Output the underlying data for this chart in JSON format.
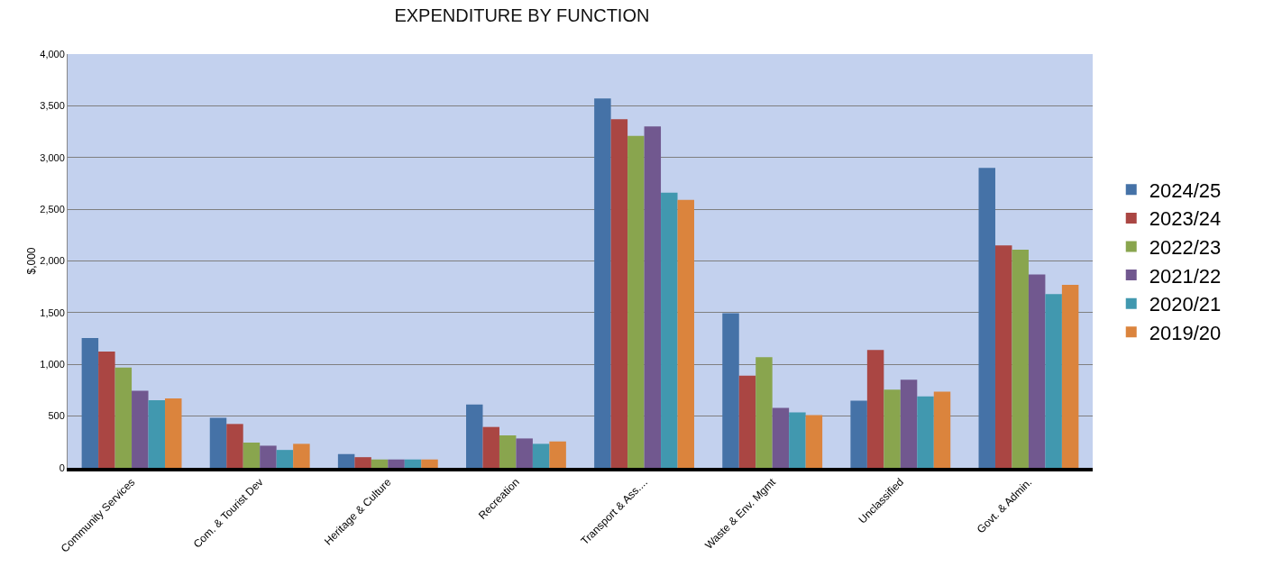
{
  "chart_data": {
    "type": "bar",
    "title": "EXPENDITURE BY FUNCTION",
    "ylabel": "$,000",
    "categories": [
      "Community Services",
      "Com. & Tourist Dev",
      "Heritage & Culture",
      "Recreation",
      "Transport & Ass....",
      "Waste & Env. Mgmt",
      "Unclassified",
      "Govt. & Admin."
    ],
    "series": [
      {
        "name": "2024/25",
        "color": "#4572a7",
        "values": [
          1255,
          483,
          133,
          612,
          3570,
          1495,
          650,
          2900
        ]
      },
      {
        "name": "2023/24",
        "color": "#aa4643",
        "values": [
          1125,
          424,
          103,
          395,
          3370,
          890,
          1140,
          2150
        ]
      },
      {
        "name": "2022/23",
        "color": "#89a54e",
        "values": [
          970,
          244,
          81,
          314,
          3210,
          1070,
          757,
          2110
        ]
      },
      {
        "name": "2021/22",
        "color": "#71588f",
        "values": [
          745,
          214,
          81,
          284,
          3300,
          580,
          851,
          1870
        ]
      },
      {
        "name": "2020/21",
        "color": "#4198af",
        "values": [
          653,
          173,
          81,
          232,
          2660,
          536,
          690,
          1680
        ]
      },
      {
        "name": "2019/20",
        "color": "#db843d",
        "values": [
          672,
          232,
          81,
          255,
          2590,
          509,
          737,
          1770
        ]
      }
    ],
    "ylim": [
      0,
      4000
    ],
    "yticks": [
      0,
      500,
      {
        "value": 1000,
        "label": "1,000"
      },
      {
        "value": 1500,
        "label": "1,500"
      },
      {
        "value": 2000,
        "label": "2,000"
      },
      {
        "value": 2500,
        "label": "2,500"
      },
      {
        "value": 3000,
        "label": "3,000"
      },
      {
        "value": 3500,
        "label": "3,500"
      },
      {
        "value": 4000,
        "label": "4,000"
      }
    ],
    "grid": "y",
    "legend": "right"
  }
}
